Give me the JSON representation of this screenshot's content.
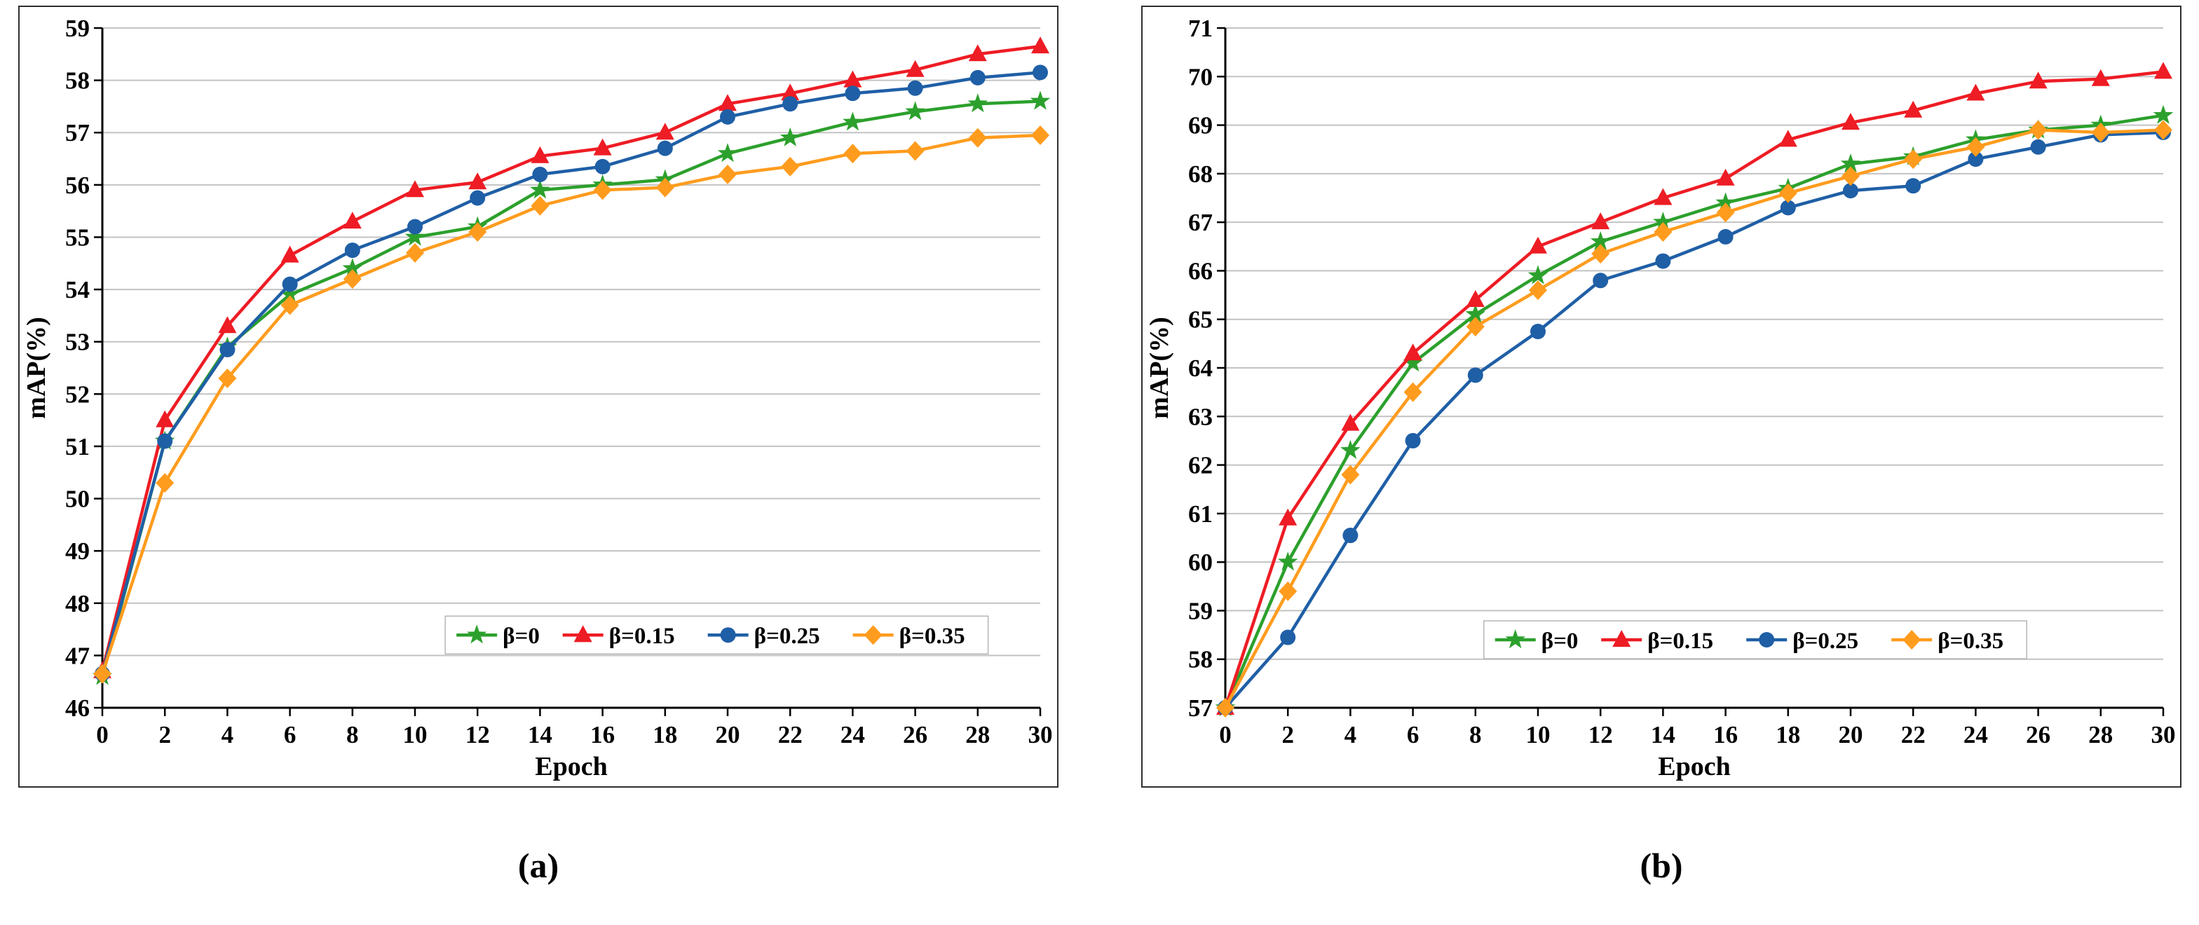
{
  "figure": {
    "captions": [
      "(a)",
      "(b)"
    ]
  },
  "chart_data": [
    {
      "type": "line",
      "title": "",
      "xlabel": "Epoch",
      "ylabel": "mAP(%)",
      "xlim": [
        0,
        30
      ],
      "xtick_step": 2,
      "ylim": [
        46,
        59
      ],
      "ytick_step": 1,
      "grid": "horizontal",
      "legend_position": "inside-bottom",
      "x": [
        0,
        2,
        4,
        6,
        8,
        10,
        12,
        14,
        16,
        18,
        20,
        22,
        24,
        26,
        28,
        30
      ],
      "series": [
        {
          "name": "β=0",
          "color": "#2CA02C",
          "marker": "star",
          "values": [
            46.6,
            51.1,
            52.9,
            53.9,
            54.4,
            55.0,
            55.2,
            55.9,
            56.0,
            56.1,
            56.6,
            56.9,
            57.2,
            57.4,
            57.55,
            57.6
          ]
        },
        {
          "name": "β=0.15",
          "color": "#EE1C24",
          "marker": "triangle",
          "values": [
            46.7,
            51.5,
            53.3,
            54.65,
            55.3,
            55.9,
            56.05,
            56.55,
            56.7,
            57.0,
            57.55,
            57.75,
            58.0,
            58.2,
            58.5,
            58.65
          ]
        },
        {
          "name": "β=0.25",
          "color": "#1F5FA6",
          "marker": "circle",
          "values": [
            46.65,
            51.1,
            52.85,
            54.1,
            54.75,
            55.2,
            55.75,
            56.2,
            56.35,
            56.7,
            57.3,
            57.55,
            57.75,
            57.85,
            58.05,
            58.15
          ]
        },
        {
          "name": "β=0.35",
          "color": "#FF9C1E",
          "marker": "diamond",
          "values": [
            46.65,
            50.3,
            52.3,
            53.7,
            54.2,
            54.7,
            55.1,
            55.6,
            55.9,
            55.95,
            56.2,
            56.35,
            56.6,
            56.65,
            56.9,
            56.95
          ]
        }
      ]
    },
    {
      "type": "line",
      "title": "",
      "xlabel": "Epoch",
      "ylabel": "mAP(%)",
      "xlim": [
        0,
        30
      ],
      "xtick_step": 2,
      "ylim": [
        57,
        71
      ],
      "ytick_step": 1,
      "grid": "horizontal",
      "legend_position": "inside-bottom",
      "x": [
        0,
        2,
        4,
        6,
        8,
        10,
        12,
        14,
        16,
        18,
        20,
        22,
        24,
        26,
        28,
        30
      ],
      "series": [
        {
          "name": "β=0",
          "color": "#2CA02C",
          "marker": "star",
          "values": [
            57.0,
            60.0,
            62.3,
            64.1,
            65.1,
            65.9,
            66.6,
            67.0,
            67.4,
            67.7,
            68.2,
            68.35,
            68.7,
            68.9,
            69.0,
            69.2
          ]
        },
        {
          "name": "β=0.15",
          "color": "#EE1C24",
          "marker": "triangle",
          "values": [
            57.0,
            60.9,
            62.85,
            64.3,
            65.4,
            66.5,
            67.0,
            67.5,
            67.9,
            68.7,
            69.05,
            69.3,
            69.65,
            69.9,
            69.95,
            70.1
          ]
        },
        {
          "name": "β=0.25",
          "color": "#1F5FA6",
          "marker": "circle",
          "values": [
            57.0,
            58.45,
            60.55,
            62.5,
            63.85,
            64.75,
            65.8,
            66.2,
            66.7,
            67.3,
            67.65,
            67.75,
            68.3,
            68.55,
            68.8,
            68.85
          ]
        },
        {
          "name": "β=0.35",
          "color": "#FF9C1E",
          "marker": "diamond",
          "values": [
            57.0,
            59.4,
            61.8,
            63.5,
            64.85,
            65.6,
            66.35,
            66.8,
            67.2,
            67.6,
            67.95,
            68.3,
            68.55,
            68.9,
            68.85,
            68.9
          ]
        }
      ]
    }
  ]
}
